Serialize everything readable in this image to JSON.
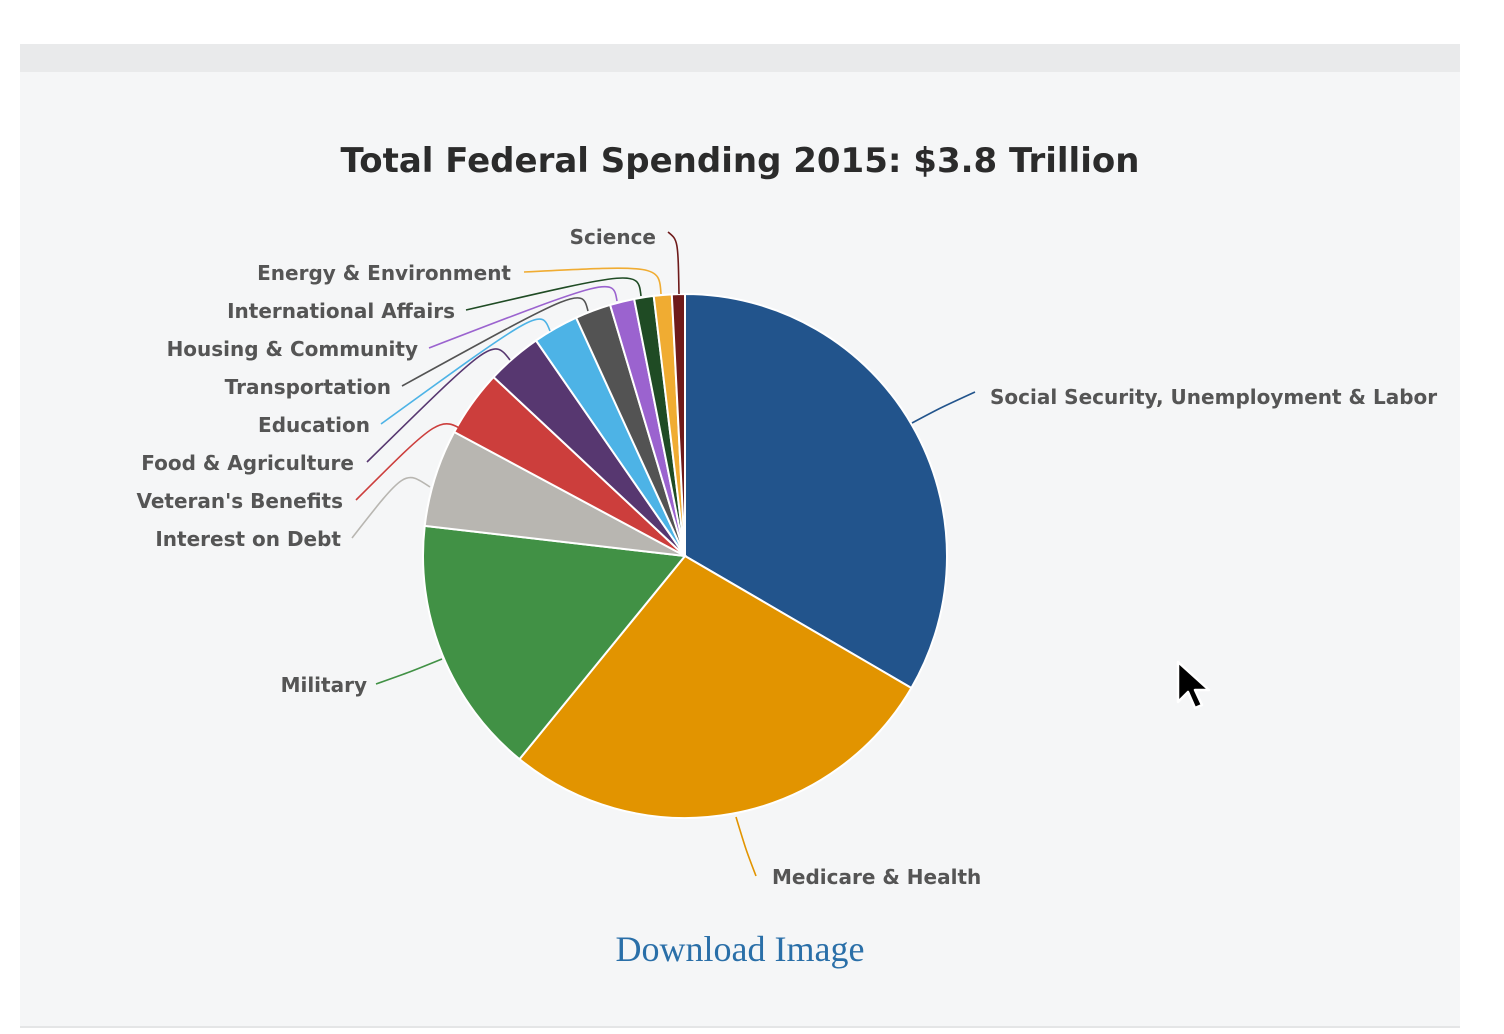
{
  "chart_data": {
    "type": "pie",
    "title": "Total Federal Spending 2015: $3.8 Trillion",
    "start_angle_deg": 0,
    "direction": "clockwise",
    "slices": [
      {
        "label": "Social Security, Unemployment & Labor",
        "value": 33.3,
        "color": "#22548c"
      },
      {
        "label": "Medicare & Health",
        "value": 27.4,
        "color": "#e29400"
      },
      {
        "label": "Military",
        "value": 15.9,
        "color": "#419145"
      },
      {
        "label": "Interest on Debt",
        "value": 6.0,
        "color": "#b8b6b1"
      },
      {
        "label": "Veteran's Benefits",
        "value": 4.1,
        "color": "#cc3e3c"
      },
      {
        "label": "Food & Agriculture",
        "value": 3.4,
        "color": "#573770"
      },
      {
        "label": "Education",
        "value": 2.8,
        "color": "#4db3e6"
      },
      {
        "label": "Transportation",
        "value": 2.2,
        "color": "#535353"
      },
      {
        "label": "Housing & Community",
        "value": 1.5,
        "color": "#9b63cf"
      },
      {
        "label": "International Affairs",
        "value": 1.2,
        "color": "#1f4b24"
      },
      {
        "label": "Energy & Environment",
        "value": 1.1,
        "color": "#f0ac32"
      },
      {
        "label": "Science",
        "value": 0.8,
        "color": "#6e1a1a"
      }
    ]
  },
  "download": {
    "label": "Download Image",
    "color": "#2a6fa8"
  },
  "colors": {
    "panel_background": "#f5f6f7",
    "panel_topbar": "#e9eaeb",
    "label_text": "#555555",
    "title_text": "#2b2b2b"
  }
}
